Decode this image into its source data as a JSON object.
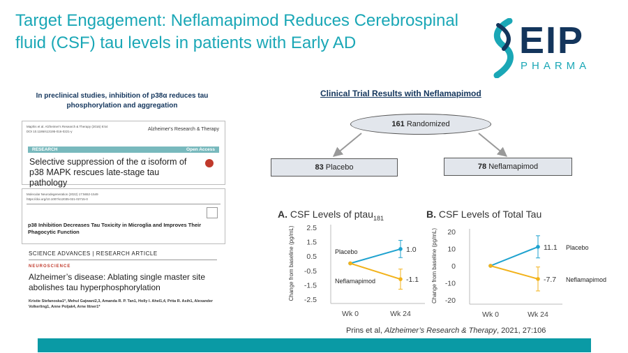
{
  "page": {
    "title": "Target Engagement:  Neflamapimod Reduces Cerebrospinal fluid (CSF) tau levels in patients with Early AD"
  },
  "logo": {
    "name": "EIP",
    "sub": "PHARMA",
    "colors": {
      "navy": "#13355c",
      "teal": "#1aa7b6"
    }
  },
  "preclinical": {
    "heading": "In preclinical studies, inhibition of p38α reduces tau phosphorylation and aggregation",
    "paper1": {
      "meta": "Maphis et al. Alzheimer's Research & Therapy (2016) 8:54",
      "doi": "DOI 10.1186/s13195-016-0221-y",
      "journal": "Alzheimer's Research & Therapy",
      "bar_left": "RESEARCH",
      "bar_right": "Open Access",
      "title": "Selective suppression of the α isoform of p38 MAPK rescues late-stage tau pathology"
    },
    "paper2": {
      "meta": "Molecular Neurodegeneration (2022) 17:5652-1549",
      "doi": "https://doi.org/10.1007/s12035-021-02715-0",
      "title": "p38 Inhibition Decreases Tau Toxicity in Microglia and Improves Their Phagocytic Function"
    },
    "paper3": {
      "header": "SCIENCE ADVANCES | RESEARCH ARTICLE",
      "section": "NEUROSCIENCE",
      "title": "Alzheimer’s disease: Ablating single master site abolishes tau hyperphosphorylation",
      "authors": "Kristie Stefanoska1*, Mehul Gajwani2,3, Amanda R. P. Tan1, Holly I. Ahel1,4, Prita R. Asih1, Alexander Volkerling1, Anne Poljak4, Arne Ittner1*"
    }
  },
  "trial": {
    "heading": "Clinical Trial Results with Neflamapimod",
    "randomized": {
      "n": "161",
      "label": "Randomized"
    },
    "placebo": {
      "n": "83",
      "label": "Placebo"
    },
    "neflamapimod": {
      "n": "78",
      "label": "Neflamapimod"
    }
  },
  "colors": {
    "placebo": "#1ea2cf",
    "neflamapimod": "#f2b21a",
    "accent": "#0a9aa5"
  },
  "chart_data": [
    {
      "type": "line",
      "panel": "A.",
      "title": "CSF Levels of ptau",
      "title_sub": "181",
      "ylabel": "Change from baseline (pg/mL)",
      "categories": [
        "Wk 0",
        "Wk 24"
      ],
      "ylim": [
        -2.5,
        2.5
      ],
      "yticks": [
        "2.5",
        "1.5",
        "0.5",
        "-0.5",
        "-1.5",
        "-2.5"
      ],
      "series": [
        {
          "name": "Placebo",
          "values": [
            0,
            1.0
          ],
          "error": [
            0,
            0.6
          ],
          "label": "1.0"
        },
        {
          "name": "Neflamapimod",
          "values": [
            0,
            -1.1
          ],
          "error": [
            0,
            0.7
          ],
          "label": "-1.1"
        }
      ]
    },
    {
      "type": "line",
      "panel": "B.",
      "title": "CSF Levels of Total Tau",
      "title_sub": "",
      "ylabel": "Change from baseline (pg/mL)",
      "categories": [
        "Wk 0",
        "Wk 24"
      ],
      "ylim": [
        -20,
        20
      ],
      "yticks": [
        "20",
        "10",
        "0",
        "-10",
        "-20"
      ],
      "series": [
        {
          "name": "Placebo",
          "values": [
            0,
            11.1
          ],
          "error": [
            0,
            6.5
          ],
          "label": "11.1"
        },
        {
          "name": "Neflamapimod",
          "values": [
            0,
            -7.7
          ],
          "error": [
            0,
            7.0
          ],
          "label": "-7.7"
        }
      ]
    }
  ],
  "citation": {
    "authors": "Prins et al, ",
    "journal": "Alzheimer’s Research &  Therapy",
    "rest": ", 2021, 27:106"
  }
}
